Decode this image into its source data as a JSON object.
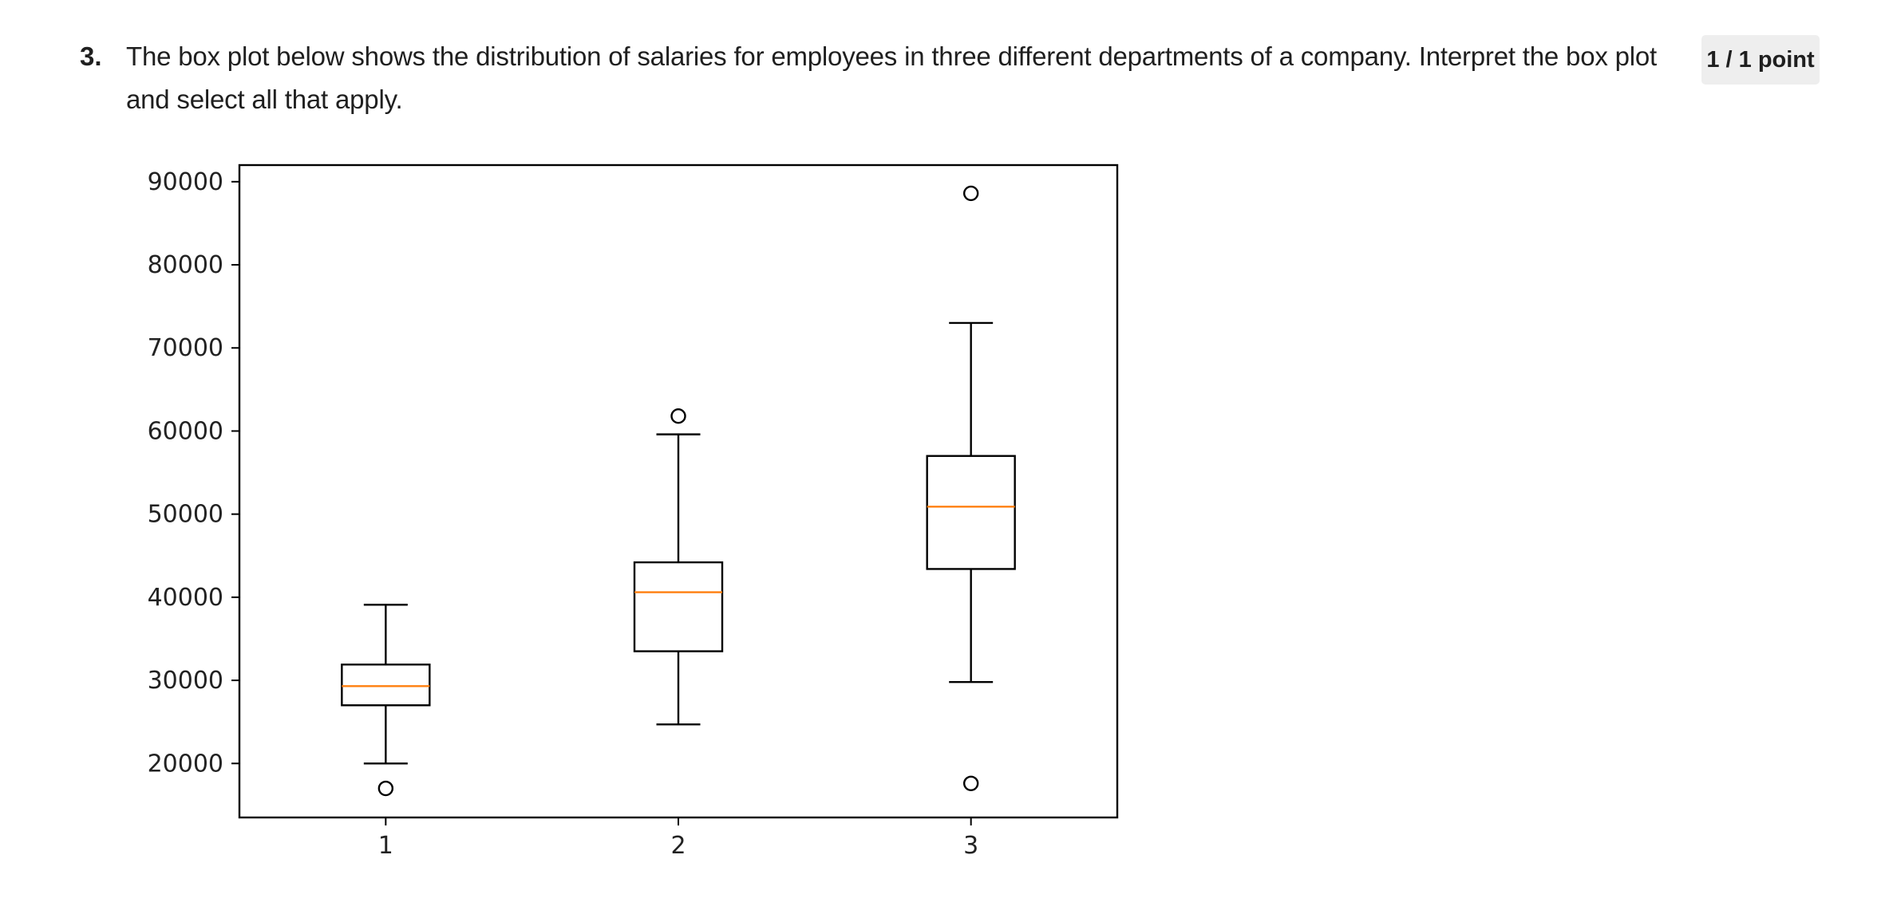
{
  "question": {
    "number": "3.",
    "text": "The box plot below shows the distribution of salaries for employees in three different departments of a company. Interpret the box plot and select all that apply.",
    "points": "1 / 1 point"
  },
  "chart_data": {
    "type": "box",
    "title": "",
    "xlabel": "",
    "ylabel": "",
    "categories": [
      "1",
      "2",
      "3"
    ],
    "ylim": [
      13500,
      92000
    ],
    "y_ticks": [
      20000,
      30000,
      40000,
      50000,
      60000,
      70000,
      80000,
      90000
    ],
    "y_tick_labels": [
      "20000",
      "30000",
      "40000",
      "50000",
      "60000",
      "70000",
      "80000",
      "90000"
    ],
    "grid": false,
    "box_color": "#000000",
    "median_color": "#ff7f0e",
    "boxes": [
      {
        "category": "1",
        "whisker_low": 20000,
        "q1": 27000,
        "median": 29300,
        "q3": 31900,
        "whisker_high": 39100,
        "outliers": [
          17000
        ]
      },
      {
        "category": "2",
        "whisker_low": 24700,
        "q1": 33500,
        "median": 40600,
        "q3": 44200,
        "whisker_high": 59600,
        "outliers": [
          61800
        ]
      },
      {
        "category": "3",
        "whisker_low": 29800,
        "q1": 43400,
        "median": 50900,
        "q3": 57000,
        "whisker_high": 73000,
        "outliers": [
          88600,
          17600
        ]
      }
    ]
  }
}
